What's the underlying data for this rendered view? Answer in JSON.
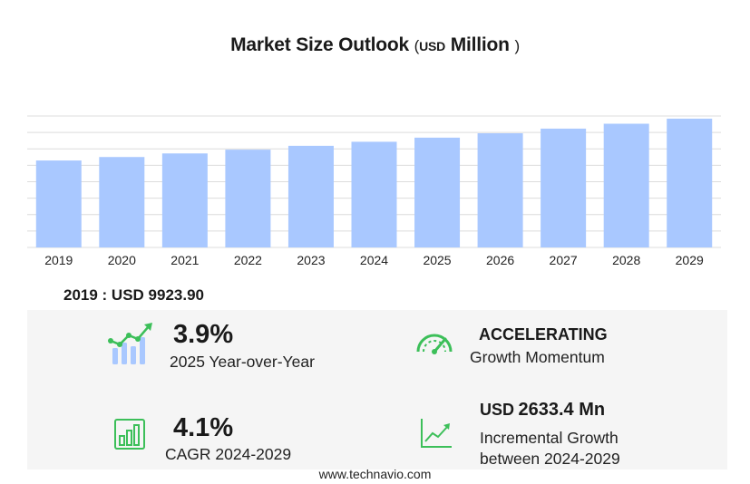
{
  "title": {
    "main": "Market Size Outlook",
    "open_paren": "(",
    "unit_small": "USD",
    "unit_big": "Million",
    "close_paren": ")"
  },
  "chart_data": {
    "type": "bar",
    "categories": [
      "2019",
      "2020",
      "2021",
      "2022",
      "2023",
      "2024",
      "2025",
      "2026",
      "2027",
      "2028",
      "2029"
    ],
    "values": [
      9923.9,
      10320,
      10730,
      11160,
      11600,
      12060,
      12530,
      13030,
      13560,
      14120,
      14700
    ],
    "ylim": [
      0,
      15000
    ],
    "grid": true,
    "bar_color": "#a9c8ff",
    "grid_color": "#dcdcdc"
  },
  "base_year": {
    "label": "2019 : USD  9923.90"
  },
  "stats": {
    "yoy": {
      "value": "3.9%",
      "caption": "2025 Year-over-Year"
    },
    "momentum": {
      "heading": "ACCELERATING",
      "caption": "Growth Momentum"
    },
    "cagr": {
      "value": "4.1%",
      "caption": "CAGR 2024-2029"
    },
    "incremental": {
      "prefix": "USD",
      "value": "2633.4 Mn",
      "caption_line1": "Incremental Growth",
      "caption_line2": "between 2024-2029"
    }
  },
  "icons": {
    "yoy": "bar-chart-trend-icon",
    "momentum": "speedometer-icon",
    "cagr": "bar-chart-growth-icon",
    "incremental": "line-chart-up-icon"
  },
  "colors": {
    "accent_green": "#3cbf59",
    "icon_blue": "#a9c8ff"
  },
  "footer": {
    "url": "www.technavio.com"
  }
}
